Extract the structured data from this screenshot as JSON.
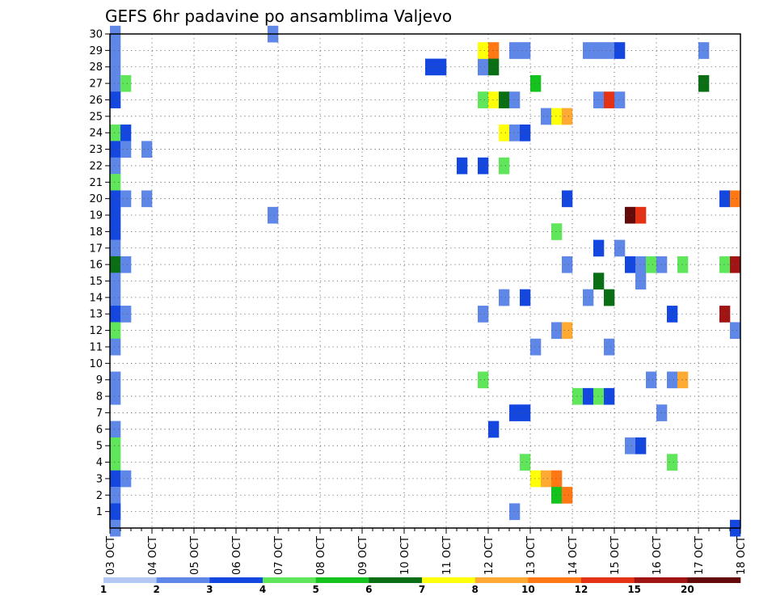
{
  "chart_data": {
    "type": "heatmap",
    "title": "GEFS 6hr padavine po ansamblima Valjevo",
    "x_tick_labels": [
      "03 OCT",
      "04 OCT",
      "05 OCT",
      "06 OCT",
      "07 OCT",
      "08 OCT",
      "09 OCT",
      "10 OCT",
      "11 OCT",
      "12 OCT",
      "13 OCT",
      "14 OCT",
      "15 OCT",
      "16 OCT",
      "17 OCT",
      "18 OCT"
    ],
    "y_tick_labels": [
      "1",
      "2",
      "3",
      "4",
      "5",
      "6",
      "7",
      "8",
      "9",
      "10",
      "11",
      "12",
      "13",
      "14",
      "15",
      "16",
      "17",
      "18",
      "19",
      "20",
      "21",
      "22",
      "23",
      "24",
      "25",
      "26",
      "27",
      "28",
      "29",
      "30"
    ],
    "x_range_days": [
      0,
      15
    ],
    "y_range": [
      0,
      30
    ],
    "step_hours": 6,
    "grid": true,
    "colorbar": {
      "position": "bottom",
      "labels": [
        "1",
        "2",
        "3",
        "4",
        "5",
        "6",
        "7",
        "8",
        "10",
        "12",
        "15",
        "20"
      ],
      "colors": [
        "#b4c8f5",
        "#5f87e8",
        "#1446e0",
        "#5fe65a",
        "#14c31e",
        "#0a6e14",
        "#ffff0a",
        "#ffaa32",
        "#ff7814",
        "#e63214",
        "#a01414",
        "#640a0a"
      ]
    },
    "cells": [
      [
        0,
        30,
        1
      ],
      [
        0,
        29,
        1
      ],
      [
        0,
        28,
        1
      ],
      [
        0,
        27,
        1
      ],
      [
        1,
        27,
        3
      ],
      [
        0,
        26,
        2
      ],
      [
        0,
        24,
        3
      ],
      [
        1,
        24,
        2
      ],
      [
        0,
        23,
        2
      ],
      [
        1,
        23,
        1
      ],
      [
        3,
        23,
        1
      ],
      [
        0,
        22,
        1
      ],
      [
        0,
        21,
        3
      ],
      [
        0,
        20,
        2
      ],
      [
        1,
        20,
        1
      ],
      [
        3,
        20,
        1
      ],
      [
        0,
        19,
        2
      ],
      [
        0,
        18,
        2
      ],
      [
        0,
        17,
        1
      ],
      [
        0,
        16,
        5
      ],
      [
        1,
        16,
        1
      ],
      [
        0,
        15,
        1
      ],
      [
        0,
        14,
        1
      ],
      [
        0,
        13,
        2
      ],
      [
        1,
        13,
        1
      ],
      [
        0,
        12,
        3
      ],
      [
        0,
        11,
        1
      ],
      [
        0,
        9,
        1
      ],
      [
        0,
        8,
        1
      ],
      [
        0,
        6,
        1
      ],
      [
        0,
        5,
        3
      ],
      [
        0,
        4,
        3
      ],
      [
        0,
        3,
        2
      ],
      [
        1,
        3,
        1
      ],
      [
        0,
        2,
        1
      ],
      [
        0,
        1,
        2
      ],
      [
        0,
        0,
        1
      ],
      [
        15,
        19,
        1
      ],
      [
        15,
        30,
        1
      ],
      [
        30,
        28,
        2
      ],
      [
        31,
        28,
        2
      ],
      [
        35,
        28,
        1
      ],
      [
        35,
        29,
        6
      ],
      [
        36,
        29,
        8
      ],
      [
        36,
        28,
        5
      ],
      [
        35,
        26,
        3
      ],
      [
        36,
        26,
        6
      ],
      [
        37,
        26,
        5
      ],
      [
        38,
        26,
        1
      ],
      [
        38,
        29,
        1
      ],
      [
        39,
        29,
        1
      ],
      [
        33,
        22,
        2
      ],
      [
        35,
        22,
        2
      ],
      [
        37,
        22,
        3
      ],
      [
        37,
        24,
        6
      ],
      [
        38,
        24,
        1
      ],
      [
        39,
        24,
        2
      ],
      [
        35,
        13,
        1
      ],
      [
        37,
        14,
        1
      ],
      [
        39,
        14,
        2
      ],
      [
        36,
        6,
        2
      ],
      [
        38,
        7,
        2
      ],
      [
        39,
        7,
        2
      ],
      [
        38,
        1,
        1
      ],
      [
        35,
        9,
        3
      ],
      [
        39,
        4,
        3
      ],
      [
        40,
        3,
        6
      ],
      [
        41,
        3,
        7
      ],
      [
        42,
        3,
        8
      ],
      [
        42,
        2,
        4
      ],
      [
        43,
        2,
        8
      ],
      [
        40,
        11,
        1
      ],
      [
        40,
        27,
        4
      ],
      [
        41,
        25,
        1
      ],
      [
        42,
        25,
        6
      ],
      [
        43,
        25,
        7
      ],
      [
        42,
        18,
        3
      ],
      [
        43,
        20,
        2
      ],
      [
        43,
        16,
        1
      ],
      [
        42,
        12,
        1
      ],
      [
        43,
        12,
        7
      ],
      [
        44,
        8,
        3
      ],
      [
        45,
        8,
        2
      ],
      [
        46,
        8,
        3
      ],
      [
        47,
        8,
        2
      ],
      [
        45,
        14,
        1
      ],
      [
        46,
        15,
        5
      ],
      [
        46,
        17,
        2
      ],
      [
        47,
        14,
        5
      ],
      [
        47,
        11,
        1
      ],
      [
        45,
        29,
        1
      ],
      [
        46,
        29,
        1
      ],
      [
        47,
        29,
        1
      ],
      [
        48,
        29,
        2
      ],
      [
        46,
        26,
        1
      ],
      [
        47,
        26,
        9
      ],
      [
        48,
        26,
        1
      ],
      [
        48,
        17,
        1
      ],
      [
        49,
        19,
        11
      ],
      [
        50,
        19,
        9
      ],
      [
        49,
        16,
        2
      ],
      [
        50,
        16,
        1
      ],
      [
        51,
        16,
        3
      ],
      [
        52,
        16,
        1
      ],
      [
        54,
        16,
        3
      ],
      [
        50,
        15,
        1
      ],
      [
        49,
        5,
        1
      ],
      [
        50,
        5,
        2
      ],
      [
        51,
        9,
        1
      ],
      [
        52,
        7,
        1
      ],
      [
        53,
        9,
        1
      ],
      [
        54,
        9,
        7
      ],
      [
        53,
        13,
        2
      ],
      [
        53,
        4,
        3
      ],
      [
        56,
        29,
        1
      ],
      [
        56,
        27,
        5
      ],
      [
        58,
        20,
        2
      ],
      [
        59,
        20,
        8
      ],
      [
        58,
        16,
        3
      ],
      [
        59,
        16,
        10
      ],
      [
        58,
        13,
        10
      ],
      [
        59,
        12,
        1
      ],
      [
        59,
        0,
        2
      ]
    ]
  }
}
